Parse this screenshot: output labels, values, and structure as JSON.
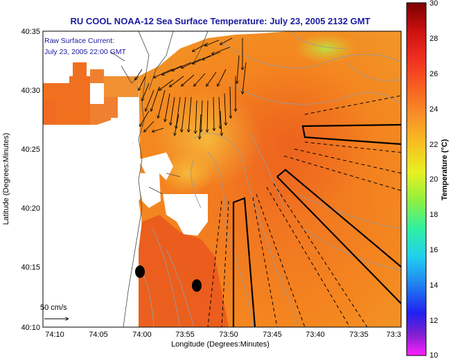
{
  "title": "RU COOL  NOAA-12  Sea Surface Temperature:  July 23, 2005 2132 GMT",
  "legend_note": {
    "line1": "Raw Surface Current:",
    "line2": "July 23, 2005 22:00 GMT"
  },
  "scale_label": "50 cm/s",
  "x_axis": {
    "label": "Longitude (Degrees:Minutes)",
    "ticks": [
      "74:10",
      "74:05",
      "74:00",
      "73:55",
      "73:50",
      "73:45",
      "73:40",
      "73:35",
      "73:3"
    ]
  },
  "y_axis": {
    "label": "Latitude (Degrees:Minutes)",
    "ticks": [
      "40:35",
      "40:30",
      "40:25",
      "40:20",
      "40:15",
      "40:10"
    ]
  },
  "colorbar": {
    "label": "Temperature (°C)",
    "ticks": [
      "30",
      "28",
      "26",
      "24",
      "22",
      "20",
      "18",
      "16",
      "14",
      "12",
      "10"
    ],
    "colors": [
      "#7a0000",
      "#cc1010",
      "#f03020",
      "#f86020",
      "#f89028",
      "#f8c020",
      "#e8f020",
      "#90f040",
      "#30f0a0",
      "#20d0f0",
      "#2080f0",
      "#2020f0",
      "#8020d0",
      "#ff20ff"
    ]
  },
  "colors": {
    "ocean_warm": "#f07a24",
    "ocean_hot": "#e83a1c",
    "land": "#ffffff",
    "contour": "#9a9a9a",
    "title": "#1a1aa0"
  }
}
